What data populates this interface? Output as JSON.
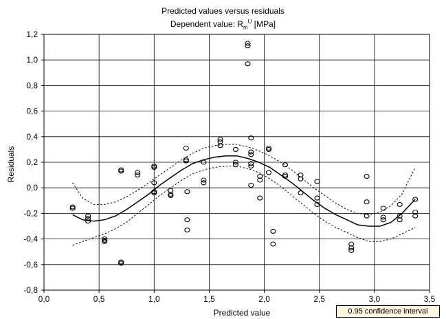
{
  "chart_data": {
    "type": "scatter",
    "title": "Predicted values versus residuals",
    "subtitle": {
      "prefix": "Dependent value: R",
      "sub": "m",
      "sup": "U",
      "suffix": " [MPa]"
    },
    "xlabel": "Predicted value",
    "ylabel": "Residuals",
    "xlim": [
      0.0,
      3.5
    ],
    "ylim": [
      -0.8,
      1.2
    ],
    "grid": true,
    "legend_placement": "bottom-right",
    "legend_entries": [
      "0.95 confidence interval"
    ],
    "x_ticks": [
      {
        "v": 0.0,
        "label": "0,0"
      },
      {
        "v": 0.5,
        "label": "0,5"
      },
      {
        "v": 1.0,
        "label": "1,0"
      },
      {
        "v": 1.5,
        "label": "1,5"
      },
      {
        "v": 2.0,
        "label": "2,0"
      },
      {
        "v": 2.5,
        "label": "2,5"
      },
      {
        "v": 3.0,
        "label": "3,0"
      },
      {
        "v": 3.5,
        "label": "3,5"
      }
    ],
    "y_ticks": [
      {
        "v": -0.8,
        "label": "-0,8"
      },
      {
        "v": -0.6,
        "label": "-0,6"
      },
      {
        "v": -0.4,
        "label": "-0,4"
      },
      {
        "v": -0.2,
        "label": "-0,2"
      },
      {
        "v": 0.0,
        "label": "0,0"
      },
      {
        "v": 0.2,
        "label": "0,2"
      },
      {
        "v": 0.4,
        "label": "0,4"
      },
      {
        "v": 0.6,
        "label": "0,6"
      },
      {
        "v": 0.8,
        "label": "0,8"
      },
      {
        "v": 1.0,
        "label": "1,0"
      },
      {
        "v": 1.2,
        "label": "1,2"
      }
    ],
    "points": [
      [
        0.26,
        -0.15
      ],
      [
        0.26,
        -0.16
      ],
      [
        0.4,
        -0.22
      ],
      [
        0.4,
        -0.24
      ],
      [
        0.4,
        -0.26
      ],
      [
        0.55,
        -0.4
      ],
      [
        0.55,
        -0.41
      ],
      [
        0.55,
        -0.42
      ],
      [
        0.7,
        -0.58
      ],
      [
        0.7,
        -0.59
      ],
      [
        0.7,
        0.14
      ],
      [
        0.7,
        0.13
      ],
      [
        0.85,
        0.12
      ],
      [
        0.85,
        0.1
      ],
      [
        1.0,
        0.17
      ],
      [
        1.0,
        0.16
      ],
      [
        1.0,
        0.04
      ],
      [
        1.0,
        -0.03
      ],
      [
        1.0,
        -0.04
      ],
      [
        1.15,
        -0.02
      ],
      [
        1.15,
        -0.05
      ],
      [
        1.15,
        -0.06
      ],
      [
        1.29,
        0.31
      ],
      [
        1.29,
        0.22
      ],
      [
        1.29,
        0.21
      ],
      [
        1.3,
        -0.03
      ],
      [
        1.3,
        -0.25
      ],
      [
        1.3,
        -0.33
      ],
      [
        1.45,
        0.2
      ],
      [
        1.45,
        0.06
      ],
      [
        1.45,
        0.04
      ],
      [
        1.6,
        0.38
      ],
      [
        1.6,
        0.36
      ],
      [
        1.6,
        0.33
      ],
      [
        1.74,
        0.3
      ],
      [
        1.74,
        0.2
      ],
      [
        1.74,
        0.18
      ],
      [
        1.85,
        1.13
      ],
      [
        1.85,
        1.11
      ],
      [
        1.85,
        0.97
      ],
      [
        1.88,
        0.39
      ],
      [
        1.88,
        0.28
      ],
      [
        1.88,
        0.26
      ],
      [
        1.88,
        0.19
      ],
      [
        1.88,
        0.17
      ],
      [
        1.88,
        0.02
      ],
      [
        1.96,
        0.09
      ],
      [
        1.96,
        0.06
      ],
      [
        1.96,
        -0.08
      ],
      [
        2.04,
        0.31
      ],
      [
        2.04,
        0.3
      ],
      [
        2.04,
        0.12
      ],
      [
        2.08,
        -0.34
      ],
      [
        2.08,
        -0.44
      ],
      [
        2.19,
        0.18
      ],
      [
        2.19,
        0.1
      ],
      [
        2.19,
        0.09
      ],
      [
        2.33,
        0.1
      ],
      [
        2.33,
        0.07
      ],
      [
        2.33,
        -0.04
      ],
      [
        2.48,
        0.05
      ],
      [
        2.48,
        -0.08
      ],
      [
        2.48,
        -0.13
      ],
      [
        2.79,
        -0.44
      ],
      [
        2.79,
        -0.47
      ],
      [
        2.79,
        -0.49
      ],
      [
        2.93,
        0.09
      ],
      [
        2.93,
        -0.11
      ],
      [
        2.93,
        -0.22
      ],
      [
        3.08,
        -0.16
      ],
      [
        3.08,
        -0.23
      ],
      [
        3.08,
        -0.25
      ],
      [
        3.23,
        -0.13
      ],
      [
        3.23,
        -0.22
      ],
      [
        3.23,
        -0.25
      ],
      [
        3.37,
        -0.09
      ],
      [
        3.37,
        -0.19
      ],
      [
        3.37,
        -0.22
      ]
    ],
    "fit_curve": {
      "x": [
        0.26,
        0.35,
        0.45,
        0.55,
        0.65,
        0.75,
        0.85,
        0.95,
        1.05,
        1.15,
        1.25,
        1.35,
        1.45,
        1.55,
        1.65,
        1.75,
        1.85,
        1.95,
        2.05,
        2.15,
        2.25,
        2.35,
        2.45,
        2.55,
        2.65,
        2.75,
        2.85,
        2.95,
        3.05,
        3.15,
        3.25,
        3.37
      ],
      "y": [
        -0.21,
        -0.25,
        -0.26,
        -0.25,
        -0.22,
        -0.17,
        -0.11,
        -0.05,
        0.02,
        0.08,
        0.14,
        0.19,
        0.22,
        0.24,
        0.25,
        0.25,
        0.23,
        0.2,
        0.16,
        0.1,
        0.04,
        -0.03,
        -0.1,
        -0.16,
        -0.21,
        -0.25,
        -0.29,
        -0.3,
        -0.3,
        -0.27,
        -0.2,
        -0.09
      ]
    },
    "ci_upper": {
      "x": [
        0.26,
        0.35,
        0.45,
        0.55,
        0.65,
        0.75,
        0.85,
        0.95,
        1.05,
        1.15,
        1.25,
        1.35,
        1.45,
        1.55,
        1.65,
        1.75,
        1.85,
        1.95,
        2.05,
        2.15,
        2.25,
        2.35,
        2.45,
        2.55,
        2.65,
        2.75,
        2.85,
        2.95,
        3.05,
        3.15,
        3.25,
        3.37
      ],
      "y": [
        0.04,
        -0.08,
        -0.13,
        -0.13,
        -0.11,
        -0.07,
        -0.02,
        0.04,
        0.1,
        0.16,
        0.22,
        0.27,
        0.31,
        0.33,
        0.34,
        0.34,
        0.32,
        0.29,
        0.25,
        0.2,
        0.14,
        0.07,
        0.0,
        -0.06,
        -0.12,
        -0.17,
        -0.2,
        -0.21,
        -0.19,
        -0.14,
        -0.05,
        0.16
      ]
    },
    "ci_lower": {
      "x": [
        0.26,
        0.35,
        0.45,
        0.55,
        0.65,
        0.75,
        0.85,
        0.95,
        1.05,
        1.15,
        1.25,
        1.35,
        1.45,
        1.55,
        1.65,
        1.75,
        1.85,
        1.95,
        2.05,
        2.15,
        2.25,
        2.35,
        2.45,
        2.55,
        2.65,
        2.75,
        2.85,
        2.95,
        3.05,
        3.15,
        3.25,
        3.37
      ],
      "y": [
        -0.45,
        -0.42,
        -0.39,
        -0.36,
        -0.32,
        -0.27,
        -0.2,
        -0.13,
        -0.06,
        0.0,
        0.06,
        0.11,
        0.14,
        0.16,
        0.17,
        0.17,
        0.15,
        0.12,
        0.07,
        0.01,
        -0.06,
        -0.13,
        -0.2,
        -0.26,
        -0.31,
        -0.35,
        -0.39,
        -0.42,
        -0.42,
        -0.4,
        -0.36,
        -0.31
      ]
    }
  }
}
